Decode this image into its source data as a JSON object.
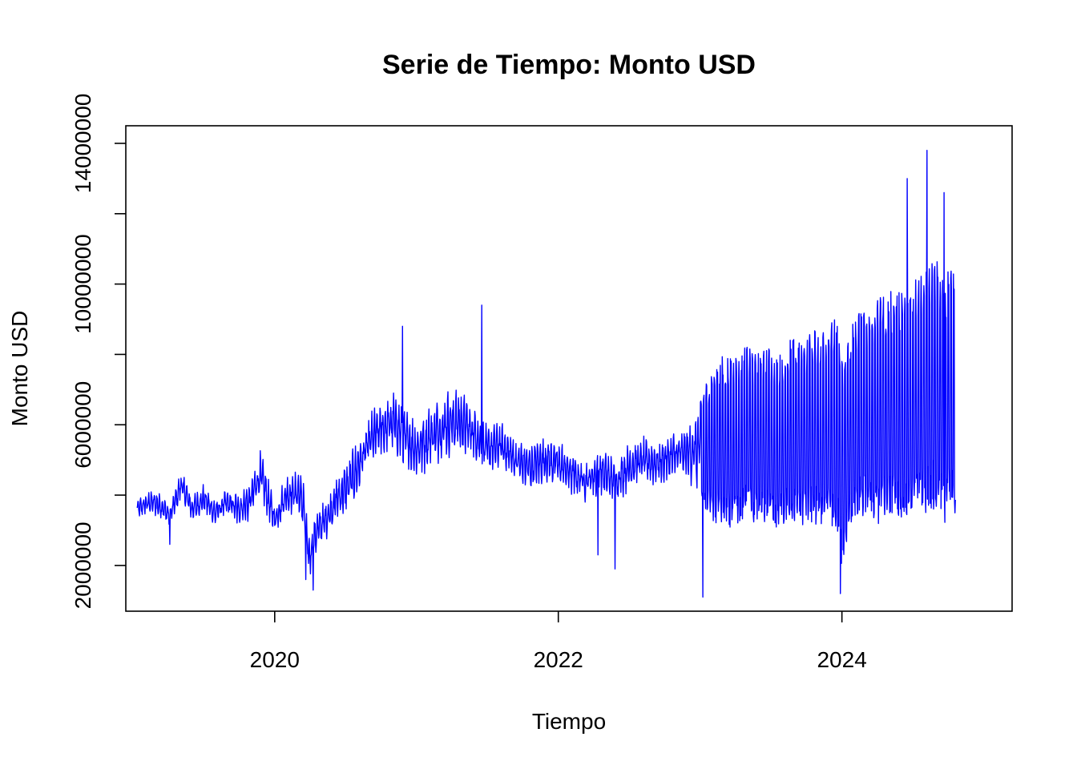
{
  "chart_data": {
    "type": "line",
    "title": "Serie de Tiempo: Monto USD",
    "xlabel": "Tiempo",
    "ylabel": "Monto USD",
    "xlim": [
      2018.95,
      2025.2
    ],
    "ylim": [
      700000,
      14500000
    ],
    "x_ticks": [
      2020,
      2022,
      2024
    ],
    "x_tick_labels": [
      "2020",
      "2022",
      "2024"
    ],
    "y_ticks": [
      2000000,
      4000000,
      6000000,
      8000000,
      10000000,
      12000000,
      14000000
    ],
    "y_tick_labels": [
      "2000000",
      "",
      "6000000",
      "",
      "10000000",
      "",
      "14000000"
    ],
    "grid": false,
    "color": "#0000FF",
    "series": [
      {
        "frequency": "daily",
        "x": [
          2019.03,
          2019.12,
          2019.2,
          2019.26,
          2019.34,
          2019.42,
          2019.5,
          2019.58,
          2019.66,
          2019.74,
          2019.82,
          2019.9,
          2020.0,
          2020.08,
          2020.16,
          2020.2,
          2020.24,
          2020.3,
          2020.36,
          2020.44,
          2020.52,
          2020.6,
          2020.68,
          2020.76,
          2020.84,
          2020.92,
          2021.0,
          2021.1,
          2021.2,
          2021.3,
          2021.4,
          2021.5,
          2021.6,
          2021.7,
          2021.8,
          2021.9,
          2022.0,
          2022.1,
          2022.2,
          2022.3,
          2022.4,
          2022.5,
          2022.6,
          2022.7,
          2022.8,
          2022.9,
          2023.0,
          2023.08,
          2023.16,
          2023.24,
          2023.32,
          2023.4,
          2023.48,
          2023.56,
          2023.64,
          2023.72,
          2023.8,
          2023.88,
          2023.96,
          2024.0,
          2024.08,
          2024.16,
          2024.24,
          2024.32,
          2024.4,
          2024.48,
          2024.56,
          2024.64,
          2024.72,
          2024.8
        ],
        "values": [
          3600000,
          3800000,
          3700000,
          3400000,
          4300000,
          3600000,
          3900000,
          3500000,
          3800000,
          3600000,
          3800000,
          4600000,
          3300000,
          4000000,
          4100000,
          3800000,
          2200000,
          3000000,
          3300000,
          3900000,
          4300000,
          4900000,
          5600000,
          5900000,
          6100000,
          5600000,
          5300000,
          5700000,
          6000000,
          6100000,
          5800000,
          5300000,
          5400000,
          5000000,
          4800000,
          5000000,
          4900000,
          4600000,
          4400000,
          4700000,
          4400000,
          4800000,
          5000000,
          4900000,
          5100000,
          5200000,
          5300000,
          5400000,
          5600000,
          5500000,
          5800000,
          5600000,
          5700000,
          5500000,
          5900000,
          5700000,
          6000000,
          5900000,
          6100000,
          4900000,
          6200000,
          6400000,
          6300000,
          6600000,
          6500000,
          6700000,
          6900000,
          7200000,
          6800000,
          7000000
        ],
        "amplitude": [
          300000,
          350000,
          400000,
          300000,
          450000,
          450000,
          450000,
          400000,
          400000,
          500000,
          600000,
          700000,
          500000,
          600000,
          700000,
          900000,
          700000,
          600000,
          600000,
          700000,
          800000,
          800000,
          800000,
          900000,
          900000,
          900000,
          900000,
          1000000,
          1000000,
          1000000,
          800000,
          700000,
          700000,
          700000,
          700000,
          700000,
          700000,
          700000,
          700000,
          700000,
          700000,
          700000,
          700000,
          700000,
          700000,
          700000,
          1500000,
          2200000,
          2400000,
          2500000,
          2500000,
          2400000,
          2500000,
          2500000,
          2600000,
          2600000,
          2800000,
          2900000,
          3000000,
          3000000,
          2900000,
          3000000,
          3200000,
          3200000,
          3300000,
          3400000,
          3500000,
          3600000,
          3600000,
          3500000
        ]
      }
    ],
    "extremes": [
      {
        "x": 2019.26,
        "y": 2600000
      },
      {
        "x": 2020.22,
        "y": 1600000
      },
      {
        "x": 2020.27,
        "y": 1300000
      },
      {
        "x": 2020.9,
        "y": 8800000
      },
      {
        "x": 2021.46,
        "y": 9400000
      },
      {
        "x": 2022.28,
        "y": 2300000
      },
      {
        "x": 2022.4,
        "y": 1900000
      },
      {
        "x": 2023.02,
        "y": 1100000
      },
      {
        "x": 2023.99,
        "y": 1200000
      },
      {
        "x": 2024.46,
        "y": 13000000
      },
      {
        "x": 2024.6,
        "y": 13800000
      },
      {
        "x": 2024.72,
        "y": 12600000
      }
    ]
  }
}
